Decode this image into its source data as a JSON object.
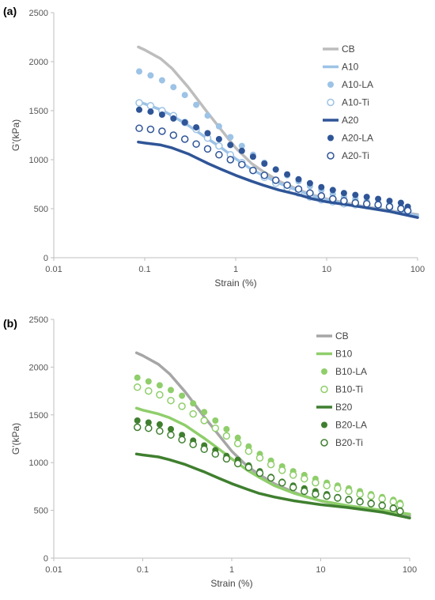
{
  "chart_data": [
    {
      "type": "line",
      "panel_label": "(a)",
      "xlabel": "Strain (%)",
      "ylabel": "G'(kPa)",
      "xscale": "log",
      "xlim": [
        0.01,
        100
      ],
      "ylim": [
        0,
        2500
      ],
      "x_ticks": [
        0.01,
        0.1,
        1,
        10,
        100
      ],
      "x_tick_labels": [
        "0.01",
        "0.1",
        "1",
        "10",
        "100"
      ],
      "y_ticks": [
        0,
        500,
        1000,
        1500,
        2000,
        2500
      ],
      "y_tick_labels": [
        "0",
        "500",
        "1000",
        "1500",
        "2000",
        "2500"
      ],
      "grid": false,
      "legend": "right",
      "series": [
        {
          "name": "CB",
          "style": "line",
          "color": "#bdbdbd",
          "filled": true,
          "x": [
            0.085,
            0.1,
            0.15,
            0.2,
            0.3,
            0.5,
            0.7,
            1,
            1.5,
            2,
            3,
            5,
            7,
            10,
            20,
            50,
            100
          ],
          "y": [
            2150,
            2120,
            2030,
            1930,
            1740,
            1470,
            1300,
            1120,
            960,
            880,
            780,
            690,
            640,
            600,
            540,
            480,
            440
          ]
        },
        {
          "name": "A10",
          "style": "line",
          "color": "#9dc3e6",
          "filled": true,
          "x": [
            0.085,
            0.1,
            0.15,
            0.2,
            0.3,
            0.5,
            0.7,
            1,
            1.5,
            2,
            3,
            5,
            7,
            10,
            20,
            50,
            100
          ],
          "y": [
            1590,
            1570,
            1510,
            1450,
            1350,
            1210,
            1120,
            1010,
            900,
            840,
            760,
            680,
            630,
            590,
            530,
            470,
            430
          ]
        },
        {
          "name": "A10-LA",
          "style": "marker",
          "color": "#9dc3e6",
          "filled": true,
          "x": [
            0.087,
            0.116,
            0.155,
            0.207,
            0.276,
            0.368,
            0.491,
            0.655,
            0.874,
            1.17,
            1.55,
            2.07,
            2.76,
            3.68,
            4.91,
            6.55,
            8.74,
            11.7,
            15.5,
            20.7,
            27.6,
            36.8,
            49.1,
            65.5,
            78
          ],
          "y": [
            1900,
            1860,
            1810,
            1740,
            1660,
            1560,
            1450,
            1340,
            1230,
            1140,
            1050,
            970,
            900,
            840,
            780,
            730,
            690,
            650,
            620,
            600,
            580,
            560,
            540,
            520,
            500
          ]
        },
        {
          "name": "A10-Ti",
          "style": "marker",
          "color": "#9dc3e6",
          "filled": false,
          "x": [
            0.087,
            0.116,
            0.155,
            0.207,
            0.276,
            0.368,
            0.491,
            0.655,
            0.874,
            1.17,
            1.55,
            2.07,
            2.76,
            3.68,
            4.91,
            6.55,
            8.74,
            11.7,
            15.5,
            20.7,
            27.6,
            36.8,
            49.1,
            65.5,
            78
          ],
          "y": [
            1580,
            1550,
            1500,
            1450,
            1380,
            1310,
            1220,
            1140,
            1050,
            970,
            890,
            820,
            760,
            710,
            660,
            620,
            590,
            570,
            550,
            540,
            530,
            520,
            510,
            490,
            470
          ]
        },
        {
          "name": "A20",
          "style": "line",
          "color": "#2f5597",
          "filled": true,
          "x": [
            0.085,
            0.1,
            0.15,
            0.2,
            0.3,
            0.5,
            0.7,
            1,
            1.5,
            2,
            3,
            5,
            7,
            10,
            20,
            50,
            100
          ],
          "y": [
            1180,
            1170,
            1150,
            1120,
            1060,
            960,
            900,
            840,
            780,
            740,
            690,
            640,
            600,
            570,
            530,
            470,
            410
          ]
        },
        {
          "name": "A20-LA",
          "style": "marker",
          "color": "#2f5597",
          "filled": true,
          "x": [
            0.087,
            0.116,
            0.155,
            0.207,
            0.276,
            0.368,
            0.491,
            0.655,
            0.874,
            1.17,
            1.55,
            2.07,
            2.76,
            3.68,
            4.91,
            6.55,
            8.74,
            11.7,
            15.5,
            20.7,
            27.6,
            36.8,
            49.1,
            65.5,
            78
          ],
          "y": [
            1510,
            1490,
            1460,
            1420,
            1380,
            1330,
            1270,
            1210,
            1150,
            1090,
            1030,
            960,
            900,
            850,
            800,
            760,
            720,
            690,
            660,
            640,
            620,
            600,
            580,
            560,
            520
          ]
        },
        {
          "name": "A20-Ti",
          "style": "marker",
          "color": "#2f5597",
          "filled": false,
          "x": [
            0.087,
            0.116,
            0.155,
            0.207,
            0.276,
            0.368,
            0.491,
            0.655,
            0.874,
            1.17,
            1.55,
            2.07,
            2.76,
            3.68,
            4.91,
            6.55,
            8.74,
            11.7,
            15.5,
            20.7,
            27.6,
            36.8,
            49.1,
            65.5,
            78
          ],
          "y": [
            1320,
            1310,
            1290,
            1250,
            1210,
            1160,
            1110,
            1050,
            1000,
            950,
            890,
            840,
            790,
            740,
            700,
            660,
            630,
            600,
            580,
            560,
            550,
            540,
            520,
            500,
            480
          ]
        }
      ]
    },
    {
      "type": "line",
      "panel_label": "(b)",
      "xlabel": "Strain (%)",
      "ylabel": "G'(kPa)",
      "xscale": "log",
      "xlim": [
        0.01,
        100
      ],
      "ylim": [
        0,
        2500
      ],
      "x_ticks": [
        0.01,
        0.1,
        1,
        10,
        100
      ],
      "x_tick_labels": [
        "0.01",
        "0.1",
        "1",
        "10",
        "100"
      ],
      "y_ticks": [
        0,
        500,
        1000,
        1500,
        2000,
        2500
      ],
      "y_tick_labels": [
        "0",
        "500",
        "1000",
        "1500",
        "2000",
        "2500"
      ],
      "grid": false,
      "legend": "right",
      "series": [
        {
          "name": "CB",
          "style": "line",
          "color": "#a6a6a6",
          "filled": true,
          "x": [
            0.085,
            0.1,
            0.15,
            0.2,
            0.3,
            0.5,
            0.7,
            1,
            1.5,
            2,
            3,
            5,
            7,
            10,
            20,
            50,
            100
          ],
          "y": [
            2150,
            2120,
            2030,
            1930,
            1740,
            1470,
            1300,
            1120,
            960,
            880,
            780,
            690,
            640,
            600,
            540,
            480,
            440
          ]
        },
        {
          "name": "B10",
          "style": "line",
          "color": "#8fce6b",
          "filled": true,
          "x": [
            0.085,
            0.1,
            0.15,
            0.2,
            0.3,
            0.5,
            0.7,
            1,
            1.5,
            2,
            3,
            5,
            7,
            10,
            20,
            50,
            100
          ],
          "y": [
            1570,
            1550,
            1510,
            1470,
            1390,
            1250,
            1150,
            1040,
            920,
            850,
            760,
            680,
            640,
            600,
            550,
            500,
            460
          ]
        },
        {
          "name": "B10-LA",
          "style": "marker",
          "color": "#8fce6b",
          "filled": true,
          "x": [
            0.087,
            0.116,
            0.155,
            0.207,
            0.276,
            0.368,
            0.491,
            0.655,
            0.874,
            1.17,
            1.55,
            2.07,
            2.76,
            3.68,
            4.91,
            6.55,
            8.74,
            11.7,
            15.5,
            20.7,
            27.6,
            36.8,
            49.1,
            65.5,
            78
          ],
          "y": [
            1890,
            1850,
            1810,
            1760,
            1700,
            1620,
            1530,
            1440,
            1350,
            1260,
            1170,
            1090,
            1020,
            960,
            910,
            870,
            830,
            790,
            760,
            730,
            700,
            670,
            640,
            610,
            580
          ]
        },
        {
          "name": "B10-Ti",
          "style": "marker",
          "color": "#8fce6b",
          "filled": false,
          "x": [
            0.087,
            0.116,
            0.155,
            0.207,
            0.276,
            0.368,
            0.491,
            0.655,
            0.874,
            1.17,
            1.55,
            2.07,
            2.76,
            3.68,
            4.91,
            6.55,
            8.74,
            11.7,
            15.5,
            20.7,
            27.6,
            36.8,
            49.1,
            65.5,
            78
          ],
          "y": [
            1790,
            1750,
            1710,
            1650,
            1590,
            1510,
            1440,
            1360,
            1280,
            1200,
            1120,
            1050,
            980,
            920,
            870,
            830,
            790,
            760,
            730,
            700,
            670,
            650,
            620,
            590,
            560
          ]
        },
        {
          "name": "B20",
          "style": "line",
          "color": "#3f7f2f",
          "filled": true,
          "x": [
            0.085,
            0.1,
            0.15,
            0.2,
            0.3,
            0.5,
            0.7,
            1,
            1.5,
            2,
            3,
            5,
            7,
            10,
            20,
            50,
            100
          ],
          "y": [
            1090,
            1080,
            1060,
            1030,
            980,
            900,
            840,
            780,
            720,
            680,
            640,
            600,
            580,
            560,
            530,
            480,
            420
          ]
        },
        {
          "name": "B20-LA",
          "style": "marker",
          "color": "#3f7f2f",
          "filled": true,
          "x": [
            0.087,
            0.116,
            0.155,
            0.207,
            0.276,
            0.368,
            0.491,
            0.655,
            0.874,
            1.17,
            1.55,
            2.07,
            2.76,
            3.68,
            4.91,
            6.55,
            8.74,
            11.7,
            15.5,
            20.7,
            27.6,
            36.8,
            49.1,
            65.5,
            78
          ],
          "y": [
            1440,
            1420,
            1400,
            1350,
            1290,
            1230,
            1180,
            1130,
            1070,
            1030,
            970,
            910,
            850,
            800,
            760,
            730,
            700,
            670,
            640,
            620,
            600,
            580,
            560,
            530,
            500
          ]
        },
        {
          "name": "B20-Ti",
          "style": "marker",
          "color": "#3f7f2f",
          "filled": false,
          "x": [
            0.087,
            0.116,
            0.155,
            0.207,
            0.276,
            0.368,
            0.491,
            0.655,
            0.874,
            1.17,
            1.55,
            2.07,
            2.76,
            3.68,
            4.91,
            6.55,
            8.74,
            11.7,
            15.5,
            20.7,
            27.6,
            36.8,
            49.1,
            65.5,
            78
          ],
          "y": [
            1370,
            1360,
            1330,
            1290,
            1240,
            1190,
            1140,
            1090,
            1040,
            990,
            950,
            890,
            840,
            790,
            740,
            700,
            670,
            650,
            630,
            610,
            590,
            570,
            550,
            520,
            490
          ]
        }
      ]
    }
  ]
}
